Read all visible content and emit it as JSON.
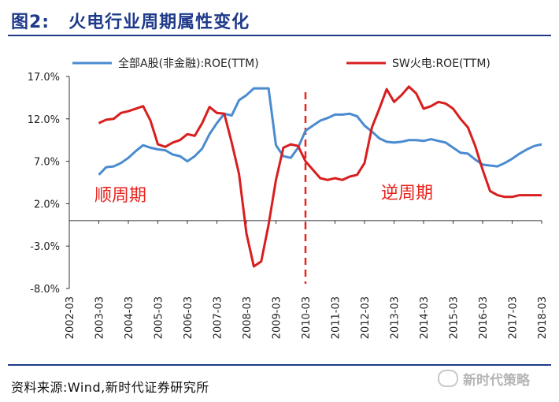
{
  "header": {
    "figure_label": "图2:",
    "title": "火电行业周期属性变化"
  },
  "source": "资料来源:Wind,新时代证券研究所",
  "watermark": "新时代策略",
  "colors": {
    "title": "#1f3a8a",
    "series_a": "#4a8bd0",
    "series_b": "#d81e1e",
    "annotation": "#e8231d"
  },
  "annotations": {
    "procyclical": "顺周期",
    "countercyclical": "逆周期"
  },
  "chart_data": {
    "type": "line",
    "ylim": [
      -8.0,
      17.0
    ],
    "yticks": [
      17.0,
      12.0,
      7.0,
      2.0,
      -3.0,
      -8.0
    ],
    "ytick_labels": [
      "17.0%",
      "12.0%",
      "7.0%",
      "2.0%",
      "-3.0%",
      "-8.0%"
    ],
    "xticks": [
      "2002-03",
      "2003-03",
      "2004-03",
      "2005-03",
      "2006-03",
      "2007-03",
      "2008-03",
      "2009-03",
      "2010-03",
      "2011-03",
      "2012-03",
      "2013-03",
      "2014-03",
      "2015-03",
      "2016-03",
      "2017-03",
      "2018-03"
    ],
    "grid": false,
    "legend_position": "top",
    "divider_at": "2010-03",
    "series": [
      {
        "name": "全部A股(非金融):ROE(TTM)",
        "color": "#4a8bd0",
        "x": [
          2003.0,
          2003.25,
          2003.5,
          2003.75,
          2004.0,
          2004.25,
          2004.5,
          2004.75,
          2005.0,
          2005.25,
          2005.5,
          2005.75,
          2006.0,
          2006.25,
          2006.5,
          2006.75,
          2007.0,
          2007.25,
          2007.5,
          2007.75,
          2008.0,
          2008.25,
          2008.5,
          2008.75,
          2009.0,
          2009.25,
          2009.5,
          2009.75,
          2010.0,
          2010.25,
          2010.5,
          2010.75,
          2011.0,
          2011.25,
          2011.5,
          2011.75,
          2012.0,
          2012.25,
          2012.5,
          2012.75,
          2013.0,
          2013.25,
          2013.5,
          2013.75,
          2014.0,
          2014.25,
          2014.5,
          2014.75,
          2015.0,
          2015.25,
          2015.5,
          2015.75,
          2016.0,
          2016.25,
          2016.5,
          2016.75,
          2017.0,
          2017.25,
          2017.5,
          2017.75,
          2018.0
        ],
        "y": [
          5.4,
          6.3,
          6.4,
          6.8,
          7.4,
          8.2,
          8.9,
          8.6,
          8.4,
          8.3,
          7.8,
          7.6,
          7.0,
          7.6,
          8.5,
          10.2,
          11.5,
          12.6,
          12.4,
          14.2,
          14.8,
          15.6,
          15.6,
          15.6,
          8.9,
          7.6,
          7.4,
          8.6,
          10.6,
          11.2,
          11.8,
          12.1,
          12.5,
          12.5,
          12.6,
          12.3,
          11.2,
          10.5,
          9.7,
          9.3,
          9.2,
          9.3,
          9.5,
          9.5,
          9.4,
          9.6,
          9.4,
          9.2,
          8.6,
          8.0,
          7.9,
          7.2,
          6.6,
          6.5,
          6.4,
          6.8,
          7.3,
          7.9,
          8.4,
          8.8,
          9.0
        ]
      },
      {
        "name": "SW火电:ROE(TTM)",
        "color": "#d81e1e",
        "x": [
          2003.0,
          2003.25,
          2003.5,
          2003.75,
          2004.0,
          2004.25,
          2004.5,
          2004.75,
          2005.0,
          2005.25,
          2005.5,
          2005.75,
          2006.0,
          2006.25,
          2006.5,
          2006.75,
          2007.0,
          2007.25,
          2007.5,
          2007.75,
          2008.0,
          2008.25,
          2008.5,
          2008.75,
          2009.0,
          2009.25,
          2009.5,
          2009.75,
          2010.0,
          2010.25,
          2010.5,
          2010.75,
          2011.0,
          2011.25,
          2011.5,
          2011.75,
          2012.0,
          2012.25,
          2012.5,
          2012.75,
          2013.0,
          2013.25,
          2013.5,
          2013.75,
          2014.0,
          2014.25,
          2014.5,
          2014.75,
          2015.0,
          2015.25,
          2015.5,
          2015.75,
          2016.0,
          2016.25,
          2016.5,
          2016.75,
          2017.0,
          2017.25,
          2017.5,
          2017.75,
          2018.0
        ],
        "y": [
          11.5,
          11.9,
          12.0,
          12.7,
          12.9,
          13.2,
          13.5,
          11.8,
          9.0,
          8.7,
          9.2,
          9.5,
          10.2,
          10.0,
          11.5,
          13.4,
          12.7,
          12.6,
          9.2,
          5.5,
          -1.5,
          -5.4,
          -4.8,
          -0.5,
          4.8,
          8.6,
          9.0,
          8.8,
          7.0,
          6.0,
          5.0,
          4.8,
          5.0,
          4.8,
          5.2,
          5.4,
          6.8,
          11.0,
          13.2,
          15.5,
          14.0,
          14.8,
          15.8,
          15.0,
          13.2,
          13.5,
          14.0,
          13.8,
          13.2,
          12.0,
          11.0,
          8.8,
          6.0,
          3.5,
          3.0,
          2.8,
          2.8,
          3.0,
          3.0,
          3.0,
          3.0
        ]
      }
    ]
  }
}
